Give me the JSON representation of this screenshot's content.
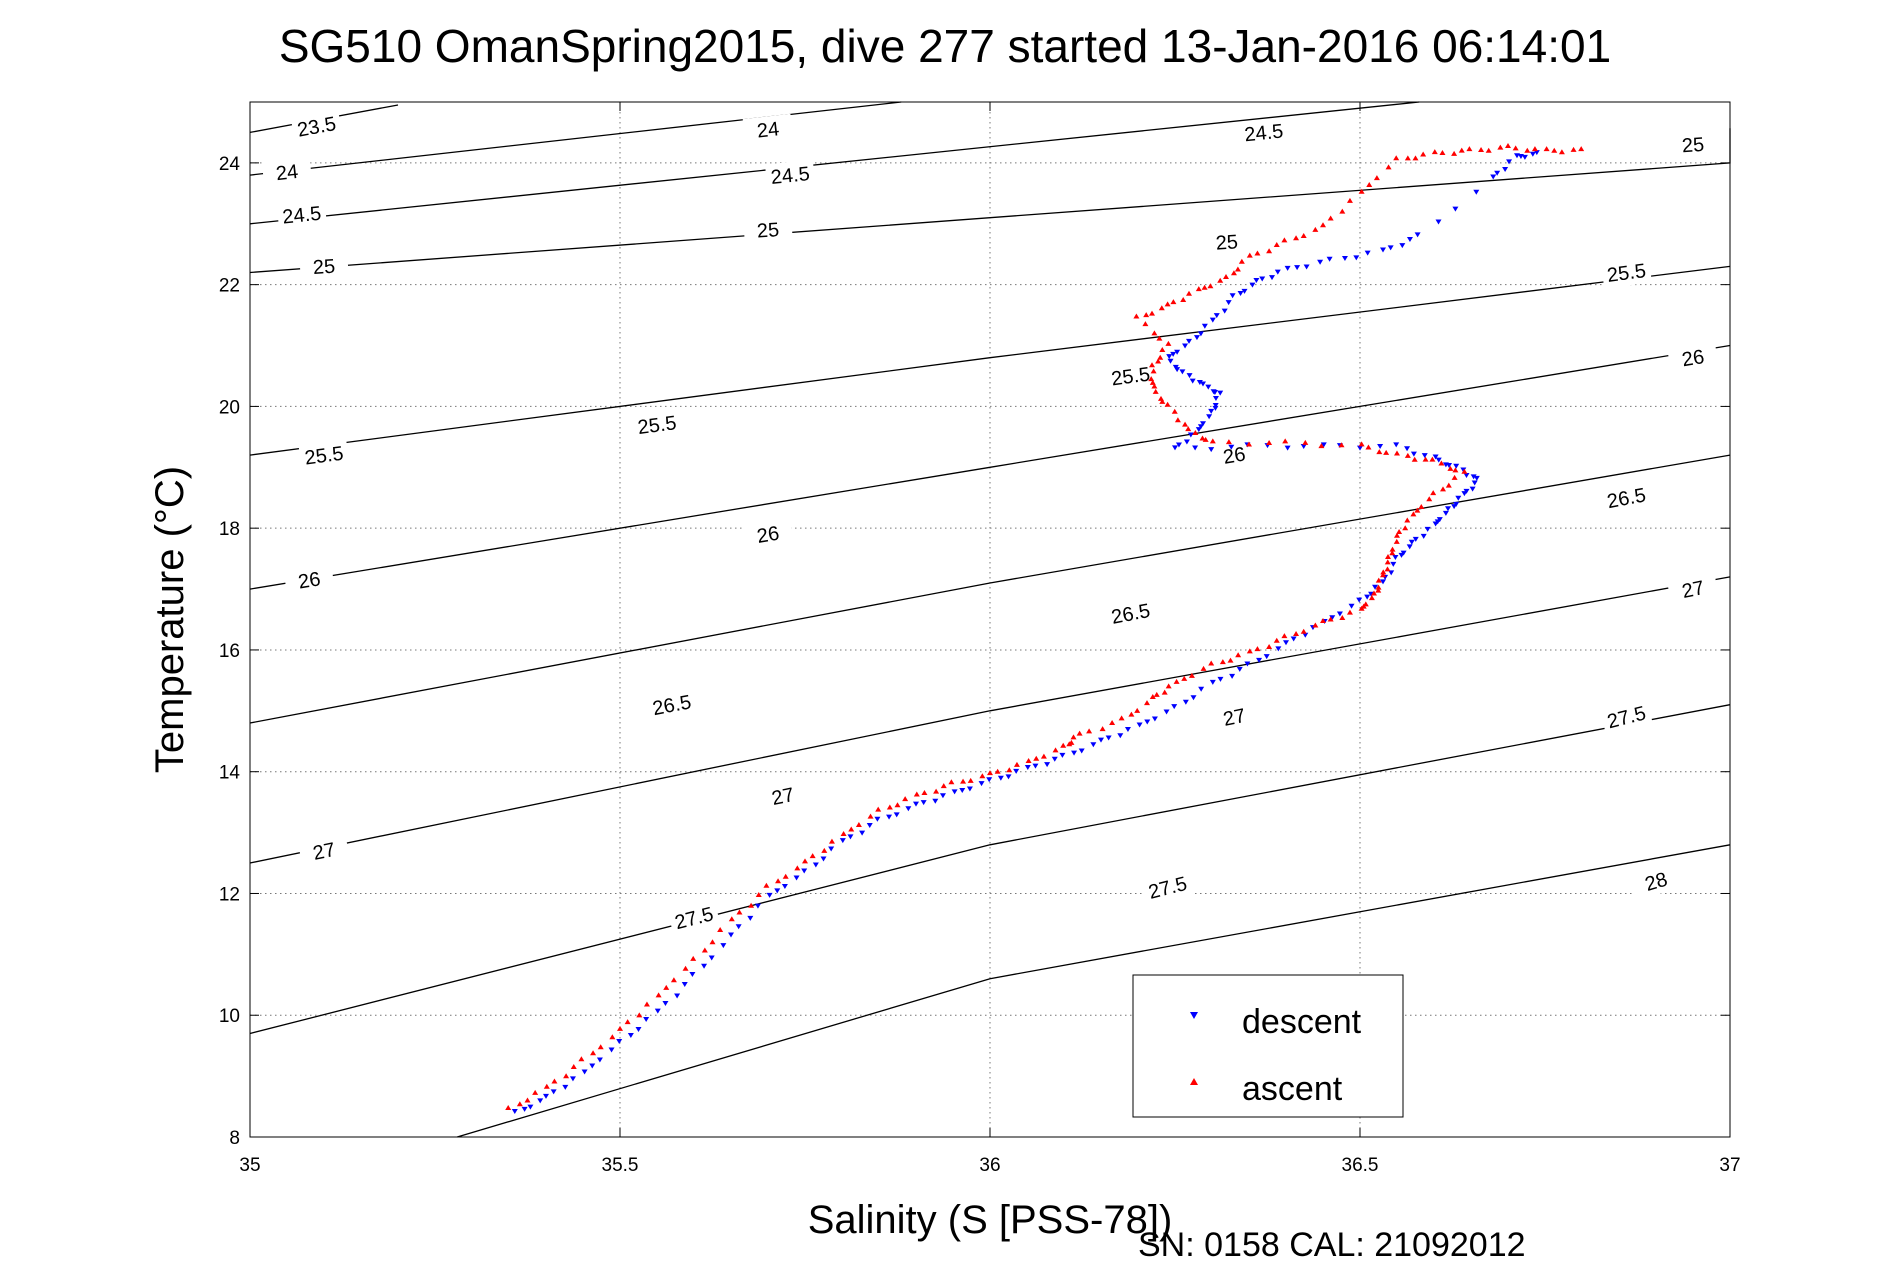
{
  "chart_data": {
    "type": "scatter",
    "title": "SG510 OmanSpring2015, dive 277 started 13-Jan-2016 06:14:01",
    "xlabel": "Salinity (S [PSS-78])",
    "ylabel": "Temperature (°C)",
    "xlim": [
      35,
      37
    ],
    "ylim": [
      8,
      25
    ],
    "xticks": [
      "35",
      "35.5",
      "36",
      "36.5",
      "37"
    ],
    "yticks": [
      "8",
      "10",
      "12",
      "14",
      "16",
      "18",
      "20",
      "22",
      "24"
    ],
    "grid": true,
    "legend_position": "lower-right",
    "footer": "SN: 0158  CAL: 21092012",
    "density_contours": [
      {
        "level": "23.5",
        "points": [
          [
            35.0,
            24.5
          ],
          [
            35.2,
            24.95
          ]
        ],
        "labels": [
          [
            35.09,
            24.6
          ]
        ]
      },
      {
        "level": "24",
        "points": [
          [
            35.0,
            23.8
          ],
          [
            35.88,
            25.0
          ]
        ],
        "labels": [
          [
            35.05,
            23.85
          ],
          [
            35.7,
            24.55
          ]
        ]
      },
      {
        "level": "24.5",
        "points": [
          [
            35.0,
            23.0
          ],
          [
            36.58,
            25.0
          ]
        ],
        "labels": [
          [
            35.07,
            23.15
          ],
          [
            35.73,
            23.8
          ],
          [
            36.37,
            24.5
          ]
        ]
      },
      {
        "level": "25",
        "points": [
          [
            35.0,
            22.2
          ],
          [
            37.0,
            24.0
          ],
          [
            37.0,
            24.57
          ]
        ],
        "labels": [
          [
            35.1,
            22.3
          ],
          [
            35.7,
            22.9
          ],
          [
            36.32,
            22.7
          ],
          [
            36.95,
            24.3
          ]
        ]
      },
      {
        "level": "25.5",
        "points": [
          [
            35.0,
            19.2
          ],
          [
            36.0,
            20.8
          ],
          [
            37.0,
            22.3
          ]
        ],
        "labels": [
          [
            35.1,
            19.2
          ],
          [
            35.55,
            19.7
          ],
          [
            36.19,
            20.5
          ],
          [
            36.86,
            22.2
          ]
        ]
      },
      {
        "level": "26",
        "points": [
          [
            35.0,
            17.0
          ],
          [
            36.0,
            19.0
          ],
          [
            37.0,
            21.0
          ]
        ],
        "labels": [
          [
            35.08,
            17.15
          ],
          [
            35.7,
            17.9
          ],
          [
            36.33,
            19.2
          ],
          [
            36.95,
            20.8
          ]
        ]
      },
      {
        "level": "26.5",
        "points": [
          [
            35.0,
            14.8
          ],
          [
            36.0,
            17.1
          ],
          [
            37.0,
            19.2
          ]
        ],
        "labels": [
          [
            35.57,
            15.1
          ],
          [
            36.19,
            16.6
          ],
          [
            36.86,
            18.5
          ]
        ]
      },
      {
        "level": "27",
        "points": [
          [
            35.0,
            12.5
          ],
          [
            36.0,
            15.0
          ],
          [
            37.0,
            17.2
          ]
        ],
        "labels": [
          [
            35.1,
            12.7
          ],
          [
            35.72,
            13.6
          ],
          [
            36.33,
            14.9
          ],
          [
            36.95,
            17.0
          ]
        ]
      },
      {
        "level": "27.5",
        "points": [
          [
            35.0,
            9.7
          ],
          [
            36.0,
            12.8
          ],
          [
            37.0,
            15.1
          ]
        ],
        "labels": [
          [
            35.6,
            11.6
          ],
          [
            36.24,
            12.1
          ],
          [
            36.86,
            14.9
          ]
        ]
      },
      {
        "level": "28",
        "points": [
          [
            35.28,
            8.0
          ],
          [
            36.0,
            10.6
          ],
          [
            37.0,
            12.8
          ]
        ],
        "labels": [
          [
            36.9,
            12.2
          ]
        ]
      }
    ],
    "series": [
      {
        "name": "descent",
        "color": "#0000ff",
        "marker": "triangle-down",
        "points": [
          [
            35.36,
            8.4
          ],
          [
            35.4,
            8.65
          ],
          [
            35.45,
            9.05
          ],
          [
            35.5,
            9.55
          ],
          [
            35.55,
            10.05
          ],
          [
            35.6,
            10.65
          ],
          [
            35.65,
            11.3
          ],
          [
            35.7,
            11.95
          ],
          [
            35.75,
            12.35
          ],
          [
            35.8,
            12.85
          ],
          [
            35.85,
            13.2
          ],
          [
            35.9,
            13.45
          ],
          [
            35.95,
            13.65
          ],
          [
            36.0,
            13.85
          ],
          [
            36.05,
            14.05
          ],
          [
            36.1,
            14.25
          ],
          [
            36.15,
            14.5
          ],
          [
            36.2,
            14.75
          ],
          [
            36.25,
            15.05
          ],
          [
            36.3,
            15.45
          ],
          [
            36.35,
            15.75
          ],
          [
            36.4,
            16.1
          ],
          [
            36.45,
            16.45
          ],
          [
            36.5,
            16.8
          ],
          [
            36.53,
            17.1
          ],
          [
            36.55,
            17.5
          ],
          [
            36.57,
            17.75
          ],
          [
            36.6,
            18.05
          ],
          [
            36.62,
            18.3
          ],
          [
            36.64,
            18.55
          ],
          [
            36.66,
            18.8
          ],
          [
            36.63,
            19.0
          ],
          [
            36.6,
            19.15
          ],
          [
            36.55,
            19.35
          ],
          [
            36.45,
            19.35
          ],
          [
            36.35,
            19.35
          ],
          [
            36.25,
            19.3
          ],
          [
            36.28,
            19.6
          ],
          [
            36.3,
            19.9
          ],
          [
            36.31,
            20.2
          ],
          [
            36.29,
            20.35
          ],
          [
            36.26,
            20.55
          ],
          [
            36.24,
            20.8
          ],
          [
            36.27,
            21.05
          ],
          [
            36.3,
            21.4
          ],
          [
            36.33,
            21.8
          ],
          [
            36.36,
            22.05
          ],
          [
            36.4,
            22.25
          ],
          [
            36.46,
            22.4
          ],
          [
            36.53,
            22.55
          ],
          [
            36.58,
            22.8
          ],
          [
            36.68,
            23.75
          ],
          [
            36.71,
            24.1
          ],
          [
            36.74,
            24.15
          ]
        ]
      },
      {
        "name": "ascent",
        "color": "#ff0000",
        "marker": "triangle-up",
        "points": [
          [
            35.35,
            8.45
          ],
          [
            35.4,
            8.8
          ],
          [
            35.45,
            9.25
          ],
          [
            35.5,
            9.75
          ],
          [
            35.55,
            10.3
          ],
          [
            35.6,
            10.9
          ],
          [
            35.65,
            11.55
          ],
          [
            35.7,
            12.1
          ],
          [
            35.75,
            12.5
          ],
          [
            35.8,
            12.95
          ],
          [
            35.85,
            13.35
          ],
          [
            35.9,
            13.6
          ],
          [
            35.95,
            13.8
          ],
          [
            36.0,
            13.95
          ],
          [
            36.05,
            14.15
          ],
          [
            36.1,
            14.4
          ],
          [
            36.12,
            14.6
          ],
          [
            36.18,
            14.85
          ],
          [
            36.22,
            15.2
          ],
          [
            36.25,
            15.45
          ],
          [
            36.3,
            15.75
          ],
          [
            36.35,
            15.95
          ],
          [
            36.4,
            16.2
          ],
          [
            36.45,
            16.45
          ],
          [
            36.5,
            16.65
          ],
          [
            36.52,
            16.9
          ],
          [
            36.53,
            17.2
          ],
          [
            36.54,
            17.5
          ],
          [
            36.55,
            17.85
          ],
          [
            36.57,
            18.2
          ],
          [
            36.6,
            18.55
          ],
          [
            36.64,
            18.9
          ],
          [
            36.6,
            19.1
          ],
          [
            36.55,
            19.2
          ],
          [
            36.5,
            19.35
          ],
          [
            36.4,
            19.4
          ],
          [
            36.3,
            19.4
          ],
          [
            36.27,
            19.6
          ],
          [
            36.24,
            20.0
          ],
          [
            36.22,
            20.3
          ],
          [
            36.22,
            20.65
          ],
          [
            36.24,
            21.0
          ],
          [
            36.2,
            21.45
          ],
          [
            36.24,
            21.65
          ],
          [
            36.28,
            21.9
          ],
          [
            36.32,
            22.1
          ],
          [
            36.35,
            22.45
          ],
          [
            36.4,
            22.7
          ],
          [
            36.45,
            22.95
          ],
          [
            36.5,
            23.5
          ],
          [
            36.55,
            24.05
          ],
          [
            36.6,
            24.15
          ],
          [
            36.65,
            24.2
          ],
          [
            36.7,
            24.25
          ],
          [
            36.75,
            24.2
          ],
          [
            36.8,
            24.2
          ]
        ]
      }
    ]
  }
}
